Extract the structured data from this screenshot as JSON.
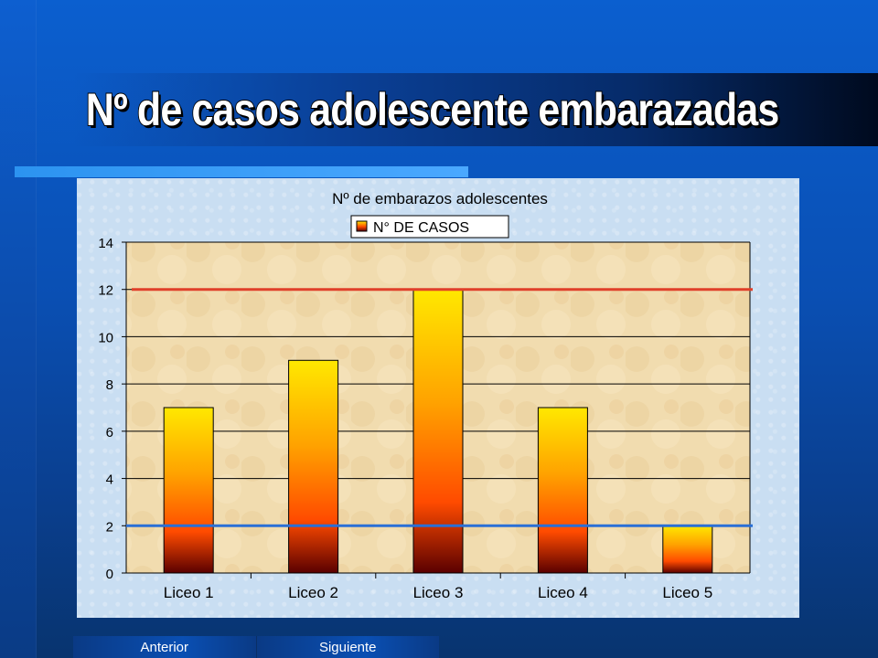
{
  "slide": {
    "title": "Nº de casos adolescente embarazadas"
  },
  "nav": {
    "prev_label": "Anterior",
    "next_label": "Siguiente"
  },
  "colors": {
    "bar_top": "#ffe800",
    "bar_mid": "#ff4b00",
    "bar_bottom": "#5a0000",
    "upper_line": "#e0402a",
    "lower_line": "#2a6fd6",
    "plot_bg": "#f2d9a8"
  },
  "chart_data": {
    "type": "bar",
    "title": "Nº de embarazos adolescentes",
    "categories": [
      "Liceo 1",
      "Liceo 2",
      "Liceo 3",
      "Liceo 4",
      "Liceo 5"
    ],
    "series": [
      {
        "name": "N° DE CASOS",
        "values": [
          7,
          9,
          12,
          7,
          2
        ]
      }
    ],
    "reference_lines": [
      {
        "value": 12,
        "color": "#e0402a"
      },
      {
        "value": 2,
        "color": "#2a6fd6"
      }
    ],
    "ylim": [
      0,
      14
    ],
    "yticks": [
      0,
      2,
      4,
      6,
      8,
      10,
      12,
      14
    ],
    "grid": true,
    "legend_position": "top-center"
  }
}
